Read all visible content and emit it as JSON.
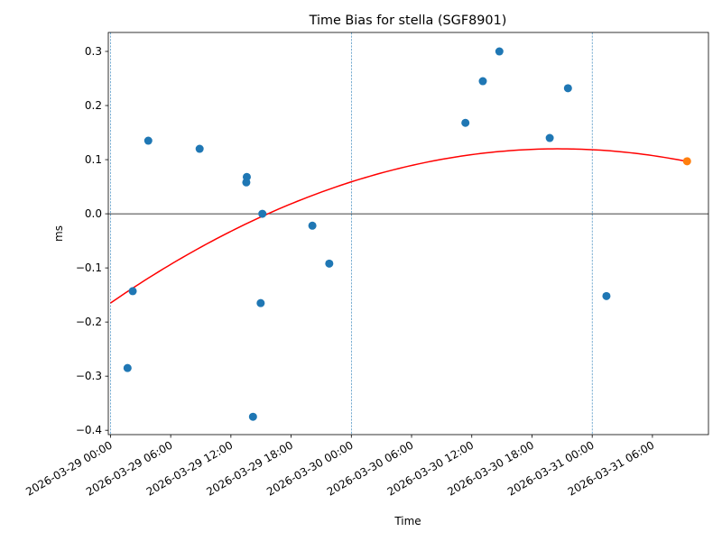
{
  "chart_data": {
    "type": "scatter",
    "title": "Time Bias for stella (SGF8901)",
    "xlabel": "Time",
    "ylabel": "ms",
    "x_range": [
      "2026-03-28 23:47",
      "2026-03-31 11:35"
    ],
    "ylim": [
      -0.408,
      0.335
    ],
    "x_ticks": [
      "2026-03-29 00:00",
      "2026-03-29 06:00",
      "2026-03-29 12:00",
      "2026-03-29 18:00",
      "2026-03-30 00:00",
      "2026-03-30 06:00",
      "2026-03-30 12:00",
      "2026-03-30 18:00",
      "2026-03-31 00:00",
      "2026-03-31 06:00"
    ],
    "y_ticks": [
      -0.4,
      -0.3,
      -0.2,
      -0.1,
      0.0,
      0.1,
      0.2,
      0.3
    ],
    "y_tick_labels": [
      "−0.4",
      "−0.3",
      "−0.2",
      "−0.1",
      "0.0",
      "0.1",
      "0.2",
      "0.3"
    ],
    "vertical_lines": [
      "2026-03-29 00:00",
      "2026-03-30 00:00",
      "2026-03-31 00:00"
    ],
    "horizontal_line": 0,
    "series": [
      {
        "kind": "points",
        "color": "#1f77b4",
        "points": [
          {
            "x": "2026-03-29 01:42",
            "y": -0.285
          },
          {
            "x": "2026-03-29 02:13",
            "y": -0.143
          },
          {
            "x": "2026-03-29 03:46",
            "y": 0.135
          },
          {
            "x": "2026-03-29 08:53",
            "y": 0.12
          },
          {
            "x": "2026-03-29 13:32",
            "y": 0.058
          },
          {
            "x": "2026-03-29 13:35",
            "y": 0.068
          },
          {
            "x": "2026-03-29 14:12",
            "y": -0.375
          },
          {
            "x": "2026-03-29 14:58",
            "y": -0.165
          },
          {
            "x": "2026-03-29 15:08",
            "y": 0.0
          },
          {
            "x": "2026-03-29 20:07",
            "y": -0.022
          },
          {
            "x": "2026-03-29 21:48",
            "y": -0.092
          },
          {
            "x": "2026-03-30 11:22",
            "y": 0.168
          },
          {
            "x": "2026-03-30 13:06",
            "y": 0.245
          },
          {
            "x": "2026-03-30 14:45",
            "y": 0.3
          },
          {
            "x": "2026-03-30 19:46",
            "y": 0.14
          },
          {
            "x": "2026-03-30 21:35",
            "y": 0.232
          },
          {
            "x": "2026-03-31 01:25",
            "y": -0.152
          }
        ]
      },
      {
        "kind": "points",
        "color": "#ff7f0e",
        "points": [
          {
            "x": "2026-03-31 09:27",
            "y": 0.097
          }
        ]
      },
      {
        "kind": "quadratic-fit",
        "color": "#ff0000",
        "x_start": "2026-03-29 00:00",
        "x_end": "2026-03-31 09:27",
        "vertex": {
          "x": "2026-03-30 20:40",
          "y": 0.12
        },
        "y_start": -0.165
      }
    ]
  }
}
